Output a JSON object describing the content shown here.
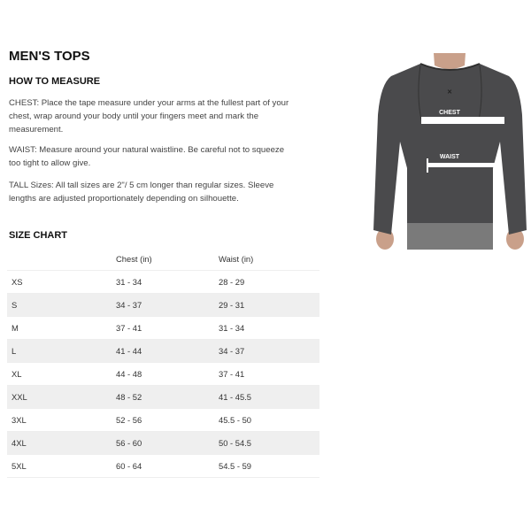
{
  "title": "MEN'S TOPS",
  "how_to_measure": {
    "heading": "HOW TO MEASURE",
    "chest": "CHEST: Place the tape measure under your arms at the fullest part of your chest, wrap around your body until your fingers meet and mark the measurement.",
    "waist": "WAIST: Measure around your natural waistline. Be careful not to squeeze too tight to allow give.",
    "tall": "TALL Sizes: All tall sizes are 2\"/ 5 cm longer than regular sizes. Sleeve lengths are adjusted proportionately depending on silhouette."
  },
  "image": {
    "chest_label": "CHEST",
    "waist_label": "WAIST"
  },
  "size_chart": {
    "heading": "SIZE CHART",
    "columns": [
      "",
      "Chest (in)",
      "Waist (in)"
    ],
    "rows": [
      [
        "XS",
        "31 - 34",
        "28 - 29"
      ],
      [
        "S",
        "34 - 37",
        "29 - 31"
      ],
      [
        "M",
        "37 - 41",
        "31 - 34"
      ],
      [
        "L",
        "41 - 44",
        "34 - 37"
      ],
      [
        "XL",
        "44 - 48",
        "37 - 41"
      ],
      [
        "XXL",
        "48 - 52",
        "41 - 45.5"
      ],
      [
        "3XL",
        "52 - 56",
        "45.5 - 50"
      ],
      [
        "4XL",
        "56 - 60",
        "50 - 54.5"
      ],
      [
        "5XL",
        "60 - 64",
        "54.5 - 59"
      ]
    ]
  }
}
